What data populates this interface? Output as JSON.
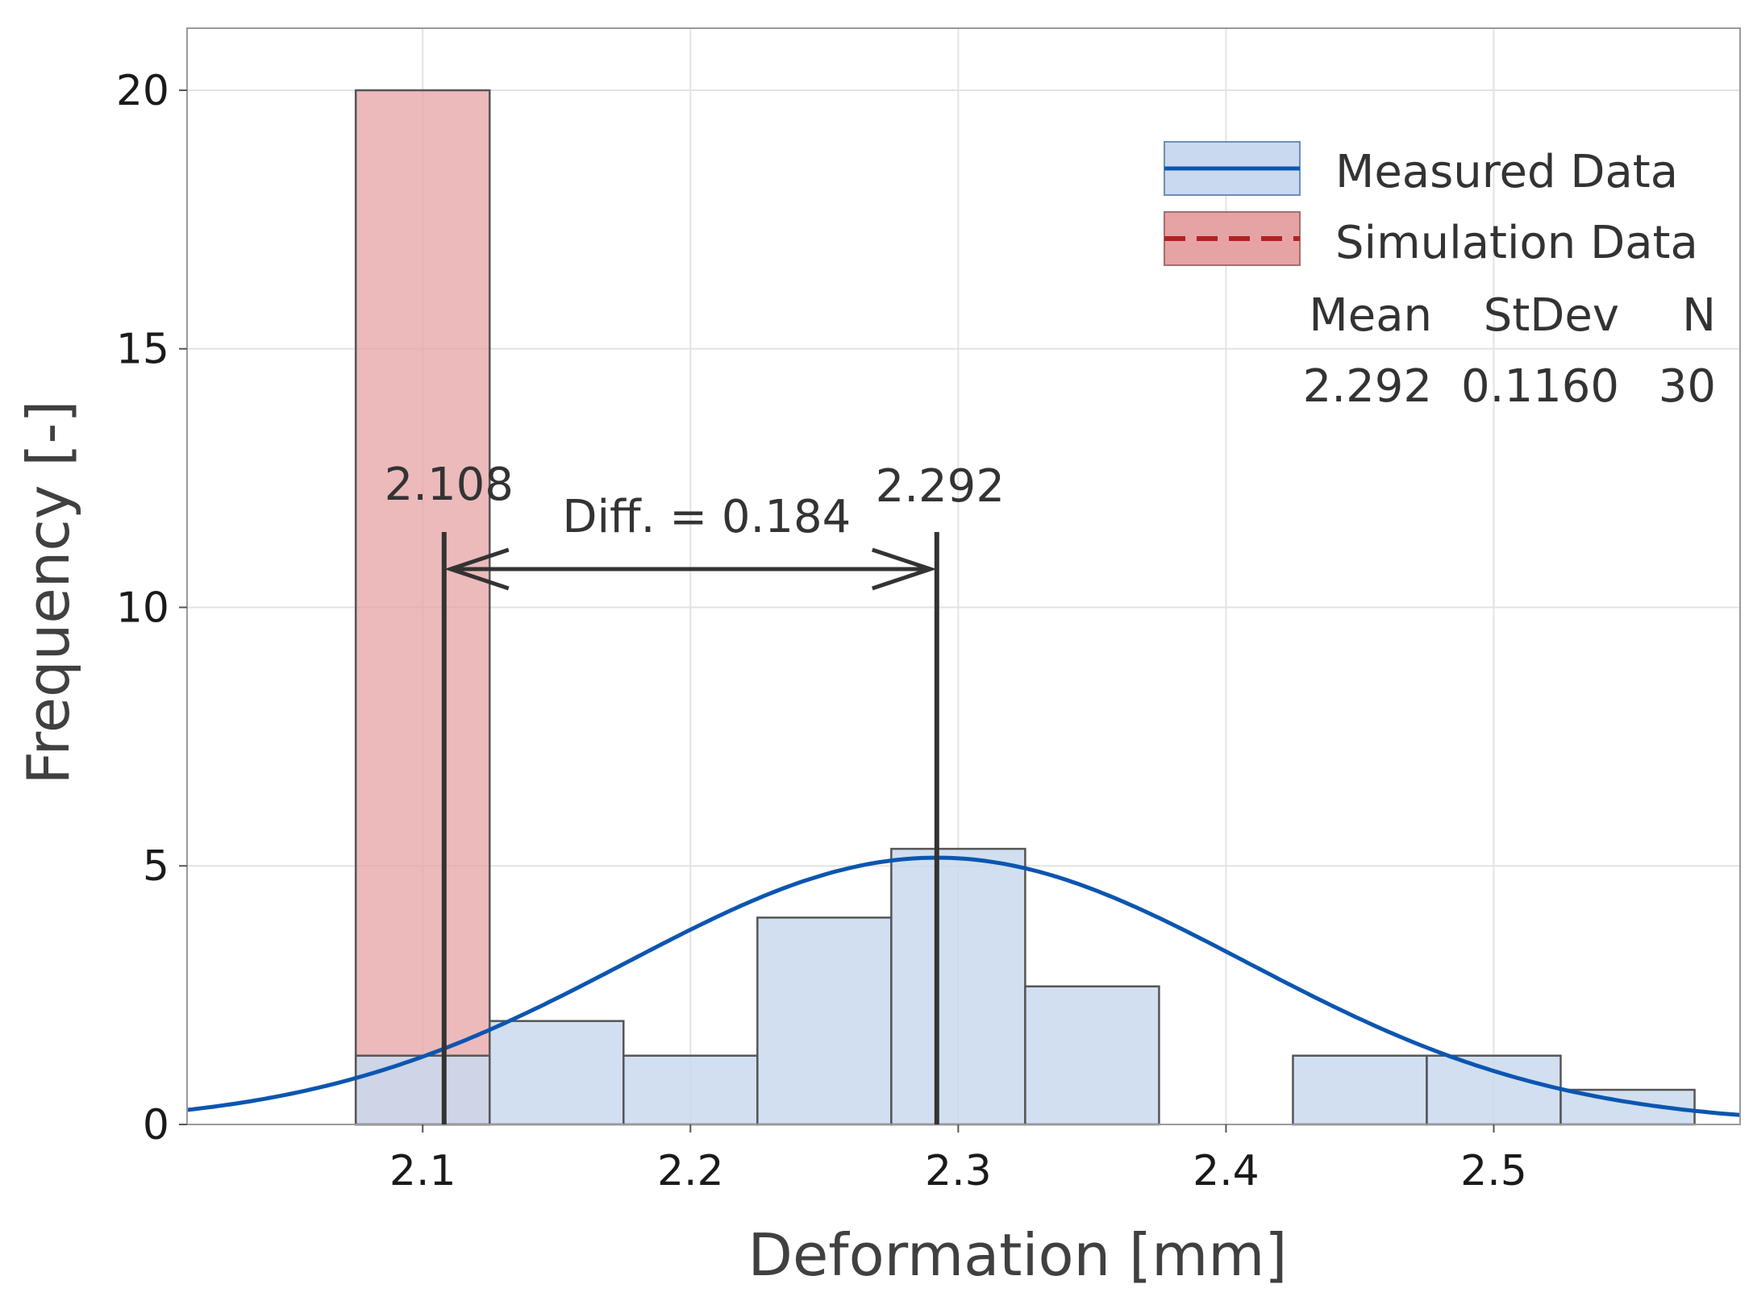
{
  "chart_data": {
    "type": "bar",
    "xlabel": "Deformation [mm]",
    "ylabel": "Frequency [-]",
    "xlim": [
      2.012,
      2.592
    ],
    "ylim": [
      0,
      21.2
    ],
    "xticks": [
      "2.1",
      "2.2",
      "2.3",
      "2.4",
      "2.5"
    ],
    "xtick_values": [
      2.1,
      2.2,
      2.3,
      2.4,
      2.5
    ],
    "yticks": [
      "0",
      "5",
      "10",
      "15",
      "20"
    ],
    "ytick_values": [
      0,
      5,
      10,
      15,
      20
    ],
    "grid": true,
    "bin_width": 0.05,
    "series": [
      {
        "name": "Measured Data",
        "color": "#0b56b0",
        "fill": "#c9d9ef",
        "line_style": "solid",
        "bin_centers": [
          2.1,
          2.15,
          2.2,
          2.25,
          2.3,
          2.35,
          2.4,
          2.45,
          2.5,
          2.55
        ],
        "values": [
          1.33,
          2.0,
          1.33,
          4.0,
          5.33,
          2.67,
          0,
          1.33,
          1.33,
          0.67
        ],
        "fit": {
          "mean": 2.292,
          "stdev": 0.116,
          "n": 30
        }
      },
      {
        "name": "Simulation Data",
        "color": "#b22222",
        "fill": "#e6a3a4",
        "line_style": "dashed",
        "bin_centers": [
          2.1
        ],
        "values": [
          20
        ]
      }
    ],
    "stats_table": {
      "headers": [
        "Mean",
        "StDev",
        "N"
      ],
      "values": [
        "2.292",
        "0.1160",
        "30"
      ]
    },
    "annotations": {
      "left_mean_value": 2.108,
      "left_mean_label": "2.108",
      "right_mean_value": 2.292,
      "right_mean_label": "2.292",
      "diff_label": "Diff. = 0.184"
    }
  }
}
